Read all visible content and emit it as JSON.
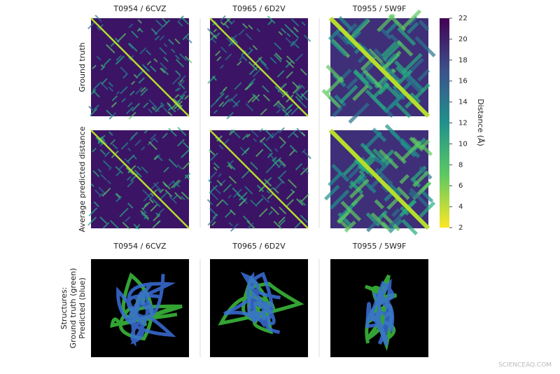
{
  "distance_maps": {
    "columns": [
      "T0954 / 6CVZ",
      "T0965 / 6D2V",
      "T0955 / 5W9F"
    ],
    "rows": [
      "Ground truth",
      "Average predicted distance"
    ]
  },
  "structures": {
    "columns": [
      "T0954 / 6CVZ",
      "T0965 / 6D2V",
      "T0955 / 5W9F"
    ],
    "label": [
      "Structures:",
      "Ground truth (green)",
      "Predicted (blue)"
    ]
  },
  "colorbar": {
    "label": "Distance (Å)",
    "ylim": [
      2,
      22
    ],
    "yticks": [
      2,
      4,
      6,
      8,
      10,
      12,
      14,
      16,
      18,
      20,
      22
    ]
  },
  "watermark": "SCIENCEAQ.COM"
}
